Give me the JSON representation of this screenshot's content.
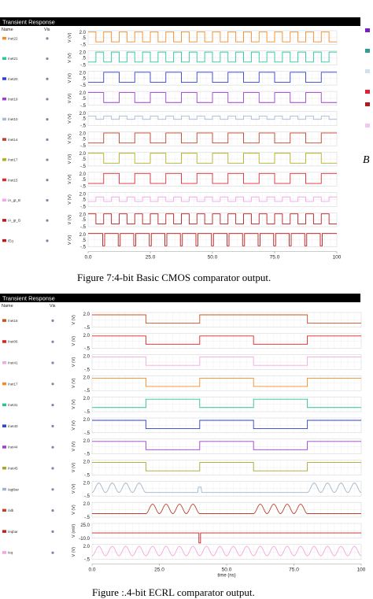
{
  "captions": {
    "top": "Figure 7:4-bit Basic CMOS comparator output.",
    "bottom": "Figure :.4-bit ECRL comparator output.",
    "stray_glyph": "B"
  },
  "legend_swatches_right_edge": [
    "#7a1fbf",
    "#2f9e8f",
    "#cfe0f0",
    "#e0203a",
    "#b01a1a",
    "#f2c6f0"
  ],
  "chart_data": [
    {
      "type": "line",
      "title": "Transient Response",
      "header": {
        "name": "Name",
        "vis": "Vis"
      },
      "x_ticks": [
        "0.0",
        "25.0",
        "50.0",
        "75.0",
        "100"
      ],
      "xlim": [
        0,
        100
      ],
      "xlabel": "",
      "ylabel": "V (V)",
      "y_tick_labels": {
        "top": "2.0",
        "bottom": "-.5"
      },
      "signal_y_tick_labels": [
        {
          "top": "2.0",
          "mid": ".5",
          "bottom": "-.5"
        },
        {
          "top": "2.0",
          "mid": ".5",
          "bottom": "-.5"
        },
        {
          "top": "2.0",
          "mid": ".5",
          "bottom": "-.5"
        },
        {
          "top": "2.0",
          "mid": ".5",
          "bottom": "-.5"
        },
        {
          "top": "2.0",
          "mid": ".5",
          "bottom": "-.5"
        },
        {
          "top": "2.0",
          "mid": ".5",
          "bottom": "-.5"
        },
        {
          "top": "2.0",
          "mid": ".5",
          "bottom": "-.5"
        },
        {
          "top": "2.0",
          "mid": ".5",
          "bottom": "-.5"
        },
        {
          "top": "2.0",
          "mid": ".5",
          "bottom": "-.5"
        },
        {
          "top": "2.0",
          "mid": ".5",
          "bottom": "-.5"
        },
        {
          "top": "2.0",
          "mid": ".5",
          "bottom": "-.5"
        }
      ],
      "grid": true,
      "signals": [
        {
          "name": "/net22",
          "color": "#f28a2a",
          "kind": "square",
          "period": 6.25,
          "high_first": true,
          "low": 0,
          "high": 1.8
        },
        {
          "name": "/net21",
          "color": "#27c7a0",
          "kind": "square",
          "period": 6.25,
          "high_first": false,
          "low": 0,
          "high": 1.8
        },
        {
          "name": "/net20",
          "color": "#2f3fd6",
          "kind": "square",
          "period": 12.5,
          "high_first": false,
          "low": 0,
          "high": 1.8
        },
        {
          "name": "/net19",
          "color": "#9a3fd0",
          "kind": "square",
          "period": 12.5,
          "high_first": true,
          "low": 0,
          "high": 1.8
        },
        {
          "name": "/net10",
          "color": "#a8bcd8",
          "kind": "square",
          "period": 6.25,
          "high_first": true,
          "low": 0.6,
          "high": 1.2
        },
        {
          "name": "/net14",
          "color": "#c0402a",
          "kind": "square",
          "period": 12.5,
          "high_first": false,
          "low": 0,
          "high": 1.8
        },
        {
          "name": "/net17",
          "color": "#b0b020",
          "kind": "square",
          "period": 12.5,
          "high_first": true,
          "low": 0,
          "high": 1.8
        },
        {
          "name": "/net15",
          "color": "#e02830",
          "kind": "square",
          "period": 12.5,
          "high_first": false,
          "low": 0,
          "high": 1.8
        },
        {
          "name": "/A_gt_B",
          "color": "#f2a6e8",
          "kind": "square",
          "period": 6.25,
          "high_first": false,
          "low": 0.4,
          "high": 1.2
        },
        {
          "name": "/A_gt_B",
          "color": "#b81c1c",
          "kind": "square",
          "period": 6.25,
          "high_first": true,
          "low": 0,
          "high": 1.8
        },
        {
          "name": "/Eq",
          "color": "#b81c1c",
          "kind": "pulse",
          "period": 6.25,
          "low": -0.3,
          "high": 1.9
        }
      ]
    },
    {
      "type": "line",
      "title": "Transient Response",
      "header": {
        "name": "Name",
        "vis": "Vis"
      },
      "x_ticks": [
        "0.0",
        "25.0",
        "50.0",
        "75.0",
        "100"
      ],
      "xlim": [
        0,
        100
      ],
      "xlabel": "time (ns)",
      "ylabel": "V (V)",
      "y_tick_labels": {
        "top": "2.0",
        "bottom": "-.5"
      },
      "signal_y_tick_labels": [
        {
          "top": "2.0",
          "bottom": "-.5"
        },
        {
          "top": "2.0",
          "bottom": "-.5"
        },
        {
          "top": "2.0",
          "bottom": "-.5"
        },
        {
          "top": "2.0",
          "bottom": "-.5"
        },
        {
          "top": "2.0",
          "bottom": "-.5"
        },
        {
          "top": "2.0",
          "bottom": "-.5"
        },
        {
          "top": "2.0",
          "bottom": "-.5"
        },
        {
          "top": "2.0",
          "bottom": "-.5"
        },
        {
          "top": "2.0",
          "bottom": "-.5"
        },
        {
          "top": "2.0",
          "bottom": "-.5"
        },
        {
          "top": "25.0",
          "bottom": "-10.0"
        },
        {
          "top": "2.0",
          "bottom": "-.5"
        }
      ],
      "special_ylabel": {
        "index": 10,
        "text": "V (mV)"
      },
      "grid": true,
      "signals": [
        {
          "name": "/net16",
          "color": "#d0501e",
          "kind": "segments",
          "segments": [
            [
              0,
              20,
              1.6
            ],
            [
              20,
              40,
              0.2
            ],
            [
              40,
              80,
              1.6
            ],
            [
              80,
              100,
              0.2
            ]
          ]
        },
        {
          "name": "/net06",
          "color": "#e02020",
          "kind": "segments",
          "segments": [
            [
              0,
              20,
              1.6
            ],
            [
              20,
              40,
              0.2
            ],
            [
              40,
              60,
              1.6
            ],
            [
              60,
              80,
              0.2
            ],
            [
              80,
              100,
              1.6
            ]
          ]
        },
        {
          "name": "/net41",
          "color": "#f0a8e0",
          "kind": "segments",
          "segments": [
            [
              0,
              20,
              1.6
            ],
            [
              20,
              40,
              0.2
            ],
            [
              40,
              60,
              1.6
            ],
            [
              60,
              80,
              0.2
            ],
            [
              80,
              100,
              1.6
            ]
          ]
        },
        {
          "name": "/net17",
          "color": "#f28a2a",
          "kind": "segments",
          "segments": [
            [
              0,
              20,
              1.6
            ],
            [
              20,
              40,
              0.2
            ],
            [
              40,
              60,
              1.6
            ],
            [
              60,
              80,
              0.2
            ],
            [
              80,
              100,
              1.6
            ]
          ]
        },
        {
          "name": "/net31",
          "color": "#27c78a",
          "kind": "segments",
          "segments": [
            [
              0,
              20,
              0.2
            ],
            [
              20,
              40,
              1.6
            ],
            [
              40,
              60,
              0.2
            ],
            [
              60,
              80,
              1.6
            ],
            [
              80,
              100,
              0.2
            ]
          ]
        },
        {
          "name": "/net40",
          "color": "#2f3fd6",
          "kind": "segments",
          "segments": [
            [
              0,
              20,
              1.6
            ],
            [
              20,
              40,
              0.2
            ],
            [
              40,
              60,
              1.6
            ],
            [
              60,
              80,
              0.2
            ],
            [
              80,
              100,
              1.6
            ]
          ]
        },
        {
          "name": "/net44",
          "color": "#9a3fd0",
          "kind": "segments",
          "segments": [
            [
              0,
              20,
              1.6
            ],
            [
              20,
              40,
              0.2
            ],
            [
              40,
              60,
              1.6
            ],
            [
              60,
              80,
              0.2
            ],
            [
              80,
              100,
              1.6
            ]
          ]
        },
        {
          "name": "/net45",
          "color": "#a8a820",
          "kind": "segments",
          "segments": [
            [
              0,
              20,
              1.6
            ],
            [
              20,
              40,
              0.2
            ],
            [
              40,
              60,
              1.6
            ],
            [
              60,
              80,
              0.2
            ],
            [
              80,
              100,
              1.6
            ]
          ]
        },
        {
          "name": "/agtbar",
          "color": "#a0b4cc",
          "kind": "bursts",
          "bursts": [
            [
              0,
              20
            ],
            [
              80,
              100
            ]
          ],
          "period": 5,
          "low": 0.1,
          "high": 1.7,
          "glitch": 40
        },
        {
          "name": "/alb",
          "color": "#c0402a",
          "kind": "bursts",
          "bursts": [
            [
              20,
              40
            ],
            [
              60,
              80
            ]
          ],
          "period": 5,
          "low": 0.1,
          "high": 1.7
        },
        {
          "name": "/eqbar",
          "color": "#c02020",
          "kind": "spike",
          "level": 0.4,
          "at": 40,
          "depth": -1.3
        },
        {
          "name": "/eq",
          "color": "#f2a6e0",
          "kind": "sine",
          "period": 5,
          "low": 0.1,
          "high": 1.7
        }
      ]
    }
  ]
}
